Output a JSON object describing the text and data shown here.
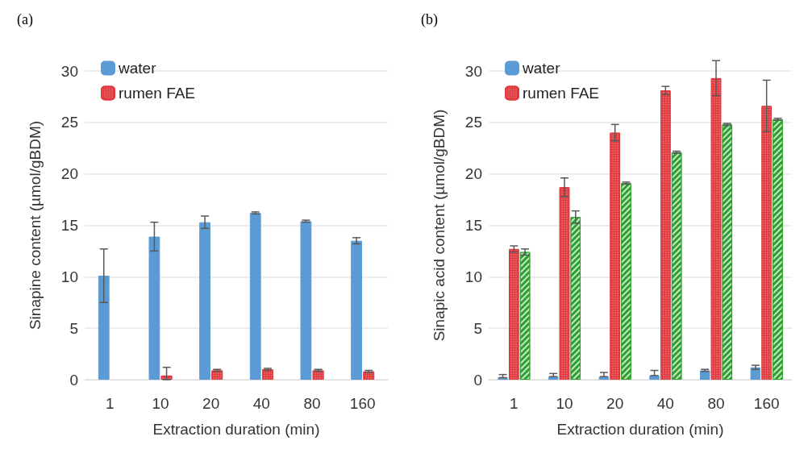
{
  "chart_data": [
    {
      "type": "bar",
      "title": "(a)",
      "xlabel": "Extraction duration (min)",
      "ylabel": "Sinapine content (µmol/gBDM)",
      "categories": [
        "1",
        "10",
        "20",
        "40",
        "80",
        "160"
      ],
      "ylim": [
        0,
        30
      ],
      "yticks": [
        0,
        5,
        10,
        15,
        20,
        25,
        30
      ],
      "grid": "y",
      "legend": "top left",
      "series": [
        {
          "name": "water",
          "color": "#5b9bd5",
          "values": [
            10.1,
            13.9,
            15.3,
            16.2,
            15.4,
            13.5
          ],
          "errors": [
            2.6,
            1.4,
            0.6,
            0.1,
            0.1,
            0.3
          ]
        },
        {
          "name": "rumen FAE",
          "color": "#e0393e",
          "values": [
            null,
            0.4,
            0.9,
            1.0,
            0.9,
            0.8
          ],
          "errors": [
            null,
            [
              0,
              1.2
            ],
            0.1,
            0.1,
            0.1,
            0.1
          ]
        }
      ]
    },
    {
      "type": "bar",
      "title": "(b)",
      "xlabel": "Extraction duration (min)",
      "ylabel": "Sinapic acid content (µmol/gBDM)",
      "categories": [
        "1",
        "10",
        "20",
        "40",
        "80",
        "160"
      ],
      "ylim": [
        0,
        30
      ],
      "yticks": [
        0,
        5,
        10,
        15,
        20,
        25,
        30
      ],
      "grid": "y",
      "legend": "top left",
      "series": [
        {
          "name": "water",
          "color": "#5b9bd5",
          "values": [
            0.2,
            0.3,
            0.3,
            0.4,
            0.9,
            1.2
          ],
          "errors": [
            [
              0.2,
              0.5
            ],
            [
              0.3,
              0.6
            ],
            [
              0.3,
              0.7
            ],
            [
              0.4,
              0.9
            ],
            0.1,
            0.2
          ]
        },
        {
          "name": "rumen FAE",
          "color": "#e0393e",
          "values": [
            12.7,
            18.7,
            24.0,
            28.1,
            29.3,
            26.6
          ],
          "errors": [
            0.3,
            0.9,
            0.8,
            0.4,
            1.7,
            2.5
          ]
        },
        {
          "color": "#2ca02c",
          "values": [
            12.4,
            15.8,
            19.1,
            22.1,
            24.8,
            25.3
          ],
          "errors": [
            0.3,
            0.6,
            0.1,
            0.1,
            0.1,
            0.1
          ]
        }
      ]
    }
  ]
}
